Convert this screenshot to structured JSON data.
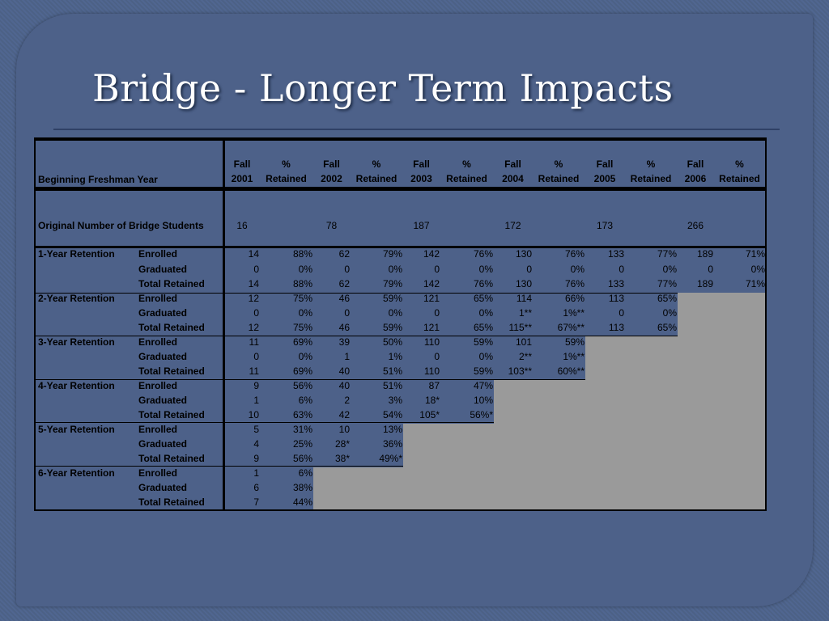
{
  "title": "Bridge - Longer Term Impacts",
  "colors": {
    "slide_bg": "#4d6189",
    "title": "#ffffff",
    "fill": "#9a9a9a"
  },
  "table": {
    "header_label": "Beginning Freshman Year",
    "columns": [
      {
        "line1": "Fall",
        "line2": "2001"
      },
      {
        "line1": "%",
        "line2": "Retained"
      },
      {
        "line1": "Fall",
        "line2": "2002"
      },
      {
        "line1": "%",
        "line2": "Retained"
      },
      {
        "line1": "Fall",
        "line2": "2003"
      },
      {
        "line1": "%",
        "line2": "Retained"
      },
      {
        "line1": "Fall",
        "line2": "2004"
      },
      {
        "line1": "%",
        "line2": "Retained"
      },
      {
        "line1": "Fall",
        "line2": "2005"
      },
      {
        "line1": "%",
        "line2": "Retained"
      },
      {
        "line1": "Fall",
        "line2": "2006"
      },
      {
        "line1": "%",
        "line2": "Retained"
      }
    ],
    "original_label": "Original Number of Bridge Students",
    "original_values": [
      "16",
      "",
      "78",
      "",
      "187",
      "",
      "172",
      "",
      "173",
      "",
      "266",
      ""
    ],
    "groups": [
      {
        "label": "1-Year Retention",
        "rows": [
          {
            "label": "Enrolled",
            "values": [
              "14",
              "88%",
              "62",
              "79%",
              "142",
              "76%",
              "130",
              "76%",
              "133",
              "77%",
              "189",
              "71%"
            ]
          },
          {
            "label": "Graduated",
            "values": [
              "0",
              "0%",
              "0",
              "0%",
              "0",
              "0%",
              "0",
              "0%",
              "0",
              "0%",
              "0",
              "0%"
            ]
          },
          {
            "label": "Total Retained",
            "values": [
              "14",
              "88%",
              "62",
              "79%",
              "142",
              "76%",
              "130",
              "76%",
              "133",
              "77%",
              "189",
              "71%"
            ]
          }
        ]
      },
      {
        "label": "2-Year Retention",
        "rows": [
          {
            "label": "Enrolled",
            "values": [
              "12",
              "75%",
              "46",
              "59%",
              "121",
              "65%",
              "114",
              "66%",
              "113",
              "65%"
            ]
          },
          {
            "label": "Graduated",
            "values": [
              "0",
              "0%",
              "0",
              "0%",
              "0",
              "0%",
              "1**",
              "1%**",
              "0",
              "0%"
            ]
          },
          {
            "label": "Total Retained",
            "values": [
              "12",
              "75%",
              "46",
              "59%",
              "121",
              "65%",
              "115**",
              "67%**",
              "113",
              "65%"
            ]
          }
        ]
      },
      {
        "label": "3-Year Retention",
        "rows": [
          {
            "label": "Enrolled",
            "values": [
              "11",
              "69%",
              "39",
              "50%",
              "110",
              "59%",
              "101",
              "59%"
            ]
          },
          {
            "label": "Graduated",
            "values": [
              "0",
              "0%",
              "1",
              "1%",
              "0",
              "0%",
              "2**",
              "1%**"
            ]
          },
          {
            "label": "Total Retained",
            "values": [
              "11",
              "69%",
              "40",
              "51%",
              "110",
              "59%",
              "103**",
              "60%**"
            ]
          }
        ]
      },
      {
        "label": "4-Year Retention",
        "rows": [
          {
            "label": "Enrolled",
            "values": [
              "9",
              "56%",
              "40",
              "51%",
              "87",
              "47%"
            ]
          },
          {
            "label": "Graduated",
            "values": [
              "1",
              "6%",
              "2",
              "3%",
              "18*",
              "10%"
            ]
          },
          {
            "label": "Total Retained",
            "values": [
              "10",
              "63%",
              "42",
              "54%",
              "105*",
              "56%*"
            ]
          }
        ]
      },
      {
        "label": "5-Year Retention",
        "rows": [
          {
            "label": "Enrolled",
            "values": [
              "5",
              "31%",
              "10",
              "13%"
            ]
          },
          {
            "label": "Graduated",
            "values": [
              "4",
              "25%",
              "28*",
              "36%"
            ]
          },
          {
            "label": "Total Retained",
            "values": [
              "9",
              "56%",
              "38*",
              "49%*"
            ]
          }
        ]
      },
      {
        "label": "6-Year Retention",
        "rows": [
          {
            "label": "Enrolled",
            "values": [
              "1",
              "6%"
            ]
          },
          {
            "label": "Graduated",
            "values": [
              "6",
              "38%"
            ]
          },
          {
            "label": "Total Retained",
            "values": [
              "7",
              "44%"
            ]
          }
        ]
      }
    ]
  }
}
